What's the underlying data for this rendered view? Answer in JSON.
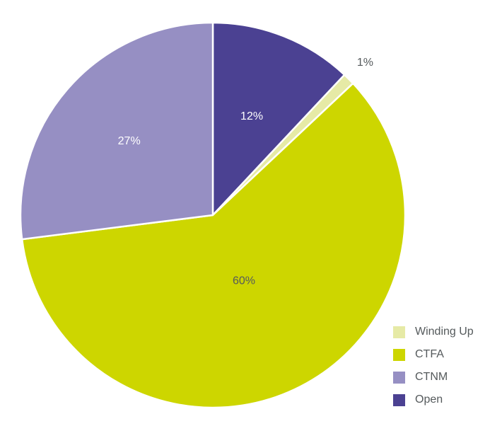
{
  "chart_data": {
    "type": "pie",
    "title": "",
    "categories": [
      "Open",
      "Winding Up",
      "CTFA",
      "CTNM"
    ],
    "values": [
      12,
      1,
      60,
      27
    ],
    "unit": "%",
    "labels": [
      "12%",
      "1%",
      "60%",
      "27%"
    ],
    "colors": [
      "#4b4192",
      "#e6eaa6",
      "#cdd600",
      "#968fc3"
    ],
    "label_colors": [
      "#ffffff",
      "#555a5c",
      "#555a5c",
      "#ffffff"
    ],
    "start_angle_deg": 0,
    "direction": "clockwise",
    "legend": {
      "placement": "bottom-right",
      "entries": [
        {
          "label": "Winding Up",
          "color": "#e6eaa6"
        },
        {
          "label": "CTFA",
          "color": "#cdd600"
        },
        {
          "label": "CTNM",
          "color": "#968fc3"
        },
        {
          "label": "Open",
          "color": "#4b4192"
        }
      ]
    }
  }
}
